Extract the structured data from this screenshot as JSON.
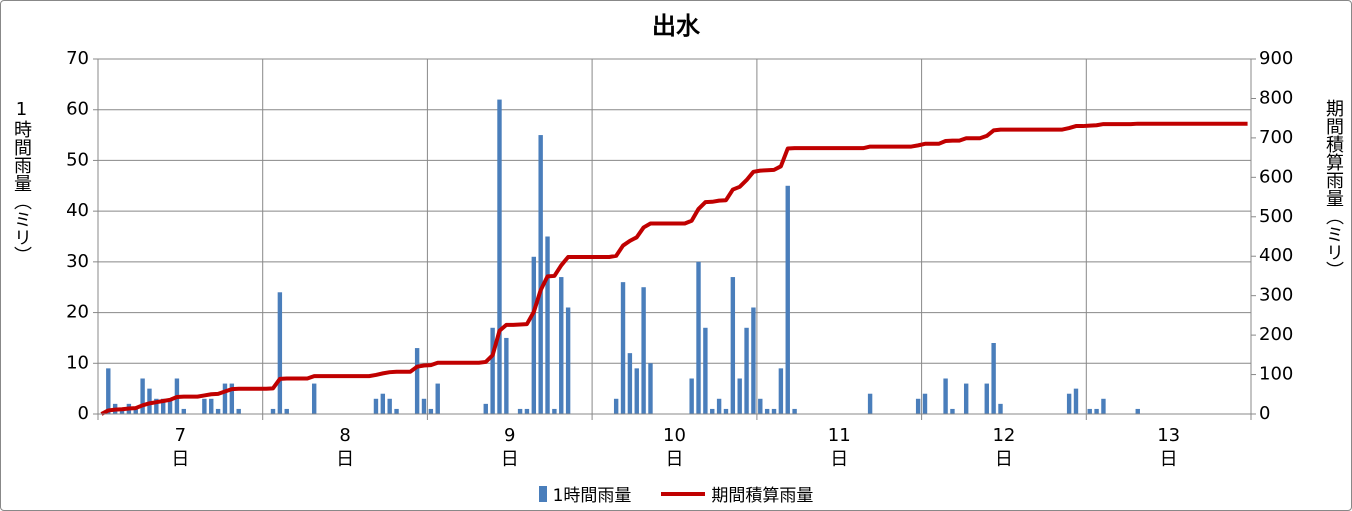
{
  "chart_data": {
    "type": "bar",
    "title": "出水",
    "y_label": "1時間雨量（ミリ）",
    "y2_label": "期間積算雨量（ミリ）",
    "categories": [
      null,
      null,
      null,
      null,
      null,
      null,
      null,
      null,
      null,
      null,
      null,
      null,
      "7\n日",
      null,
      null,
      null,
      null,
      null,
      null,
      null,
      null,
      null,
      null,
      null,
      null,
      null,
      null,
      null,
      null,
      null,
      null,
      null,
      null,
      null,
      null,
      null,
      "8\n日",
      null,
      null,
      null,
      null,
      null,
      null,
      null,
      null,
      null,
      null,
      null,
      null,
      null,
      null,
      null,
      null,
      null,
      null,
      null,
      null,
      null,
      null,
      null,
      "9\n日",
      null,
      null,
      null,
      null,
      null,
      null,
      null,
      null,
      null,
      null,
      null,
      null,
      null,
      null,
      null,
      null,
      null,
      null,
      null,
      null,
      null,
      null,
      null,
      "10\n日",
      null,
      null,
      null,
      null,
      null,
      null,
      null,
      null,
      null,
      null,
      null,
      null,
      null,
      null,
      null,
      null,
      null,
      null,
      null,
      null,
      null,
      null,
      null,
      "11\n日",
      null,
      null,
      null,
      null,
      null,
      null,
      null,
      null,
      null,
      null,
      null,
      null,
      null,
      null,
      null,
      null,
      null,
      null,
      null,
      null,
      null,
      null,
      null,
      "12\n日",
      null,
      null,
      null,
      null,
      null,
      null,
      null,
      null,
      null,
      null,
      null,
      null,
      null,
      null,
      null,
      null,
      null,
      null,
      null,
      null,
      null,
      null,
      null,
      "13\n日",
      null,
      null,
      null,
      null,
      null,
      null,
      null,
      null,
      null,
      null,
      null
    ],
    "series": [
      {
        "name": "1時間雨量",
        "type": "bar",
        "color": "#4a7ebb",
        "values": [
          0,
          9,
          2,
          1,
          2,
          1,
          7,
          5,
          3,
          3,
          3,
          7,
          1,
          0,
          0,
          3,
          3,
          1,
          6,
          6,
          1,
          0,
          0,
          0,
          0,
          1,
          24,
          1,
          0,
          0,
          0,
          6,
          0,
          0,
          0,
          0,
          0,
          0,
          0,
          0,
          3,
          4,
          3,
          1,
          0,
          0,
          13,
          3,
          1,
          6,
          0,
          0,
          0,
          0,
          0,
          0,
          2,
          17,
          62,
          15,
          0,
          1,
          1,
          31,
          55,
          35,
          1,
          27,
          21,
          0,
          0,
          0,
          0,
          0,
          0,
          3,
          26,
          12,
          9,
          25,
          10,
          0,
          0,
          0,
          0,
          0,
          7,
          30,
          17,
          1,
          3,
          1,
          27,
          7,
          17,
          21,
          3,
          1,
          1,
          9,
          45,
          1,
          0,
          0,
          0,
          0,
          0,
          0,
          0,
          0,
          0,
          0,
          4,
          0,
          0,
          0,
          0,
          0,
          0,
          3,
          4,
          0,
          0,
          7,
          1,
          0,
          6,
          0,
          0,
          6,
          14,
          2,
          0,
          0,
          0,
          0,
          0,
          0,
          0,
          0,
          0,
          4,
          5,
          0,
          1,
          1,
          3,
          0,
          0,
          0,
          0,
          1,
          0,
          0,
          0,
          0,
          0,
          0,
          0,
          0,
          0,
          0,
          0,
          0,
          0,
          0,
          0,
          0
        ]
      },
      {
        "name": "期間積算雨量",
        "type": "line",
        "axis": "y2",
        "color": "#c00000",
        "values": [
          0,
          9,
          11,
          12,
          14,
          15,
          22,
          27,
          30,
          33,
          36,
          43,
          44,
          44,
          44,
          47,
          50,
          51,
          57,
          63,
          64,
          64,
          64,
          64,
          64,
          65,
          89,
          90,
          90,
          90,
          90,
          96,
          96,
          96,
          96,
          96,
          96,
          96,
          96,
          96,
          99,
          103,
          106,
          107,
          107,
          107,
          120,
          123,
          124,
          130,
          130,
          130,
          130,
          130,
          130,
          130,
          132,
          149,
          211,
          226,
          226,
          227,
          228,
          259,
          314,
          349,
          350,
          377,
          398,
          398,
          398,
          398,
          398,
          398,
          398,
          401,
          427,
          439,
          448,
          473,
          483,
          483,
          483,
          483,
          483,
          483,
          490,
          520,
          537,
          538,
          541,
          542,
          569,
          576,
          593,
          614,
          617,
          618,
          619,
          628,
          673,
          674,
          674,
          674,
          674,
          674,
          674,
          674,
          674,
          674,
          674,
          674,
          678,
          678,
          678,
          678,
          678,
          678,
          678,
          681,
          685,
          685,
          685,
          692,
          693,
          693,
          699,
          699,
          699,
          705,
          719,
          721,
          721,
          721,
          721,
          721,
          721,
          721,
          721,
          721,
          721,
          725,
          730,
          730,
          731,
          732,
          735,
          735,
          735,
          735,
          735,
          736,
          736,
          736,
          736,
          736,
          736,
          736,
          736,
          736,
          736,
          736,
          736,
          736,
          736,
          736,
          736,
          736
        ]
      }
    ],
    "ylim": [
      0,
      70
    ],
    "yticks": [
      0,
      10,
      20,
      30,
      40,
      50,
      60,
      70
    ],
    "y2lim": [
      0,
      900
    ],
    "y2ticks": [
      0,
      100,
      200,
      300,
      400,
      500,
      600,
      700,
      800,
      900
    ],
    "grid": true
  }
}
